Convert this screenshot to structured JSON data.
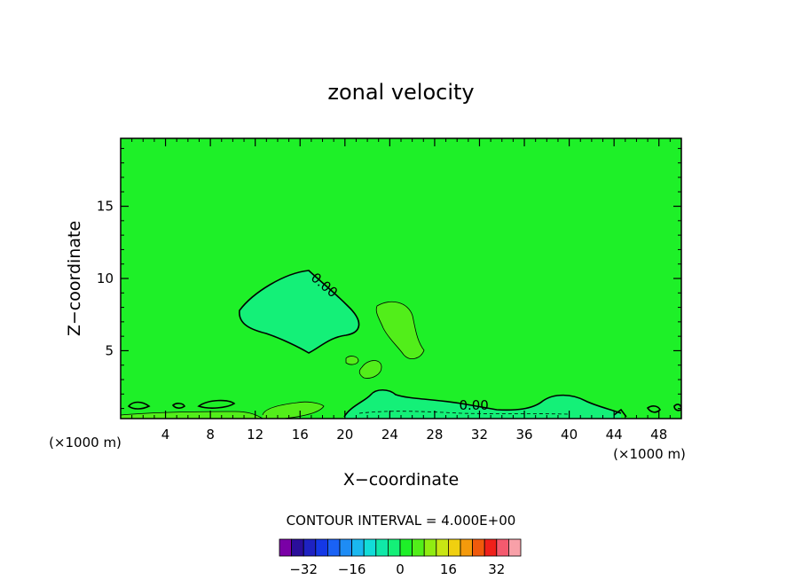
{
  "chart_data": {
    "type": "contour",
    "title": "zonal velocity",
    "xlabel": "X−coordinate",
    "ylabel": "Z−coordinate",
    "x_unit_left": "(×1000 m)",
    "x_unit_right": "(×1000 m)",
    "xlim": [
      0,
      50
    ],
    "ylim": [
      0.3,
      19.7
    ],
    "x_ticks": [
      4,
      8,
      12,
      16,
      20,
      24,
      28,
      32,
      36,
      40,
      44,
      48
    ],
    "x_tick_labels": [
      "4",
      "8",
      "12",
      "16",
      "20",
      "24",
      "28",
      "32",
      "36",
      "40",
      "44",
      "48"
    ],
    "y_ticks": [
      5,
      10,
      15
    ],
    "y_tick_labels": [
      "5",
      "10",
      "15"
    ],
    "contour_labels": [
      {
        "text": "0.00",
        "x": 17.9,
        "y": 9.3
      },
      {
        "text": "0.00",
        "x": 31.5,
        "y": 0.9
      }
    ],
    "contour_interval_text": "CONTOUR INTERVAL = 4.000E+00",
    "colorbar": {
      "levels": [
        -36,
        -32,
        -28,
        -24,
        -20,
        -16,
        -12,
        -8,
        -4,
        0,
        4,
        8,
        12,
        16,
        20,
        24,
        28,
        32,
        36
      ],
      "tick_values": [
        -32,
        -16,
        0,
        16,
        32
      ],
      "tick_labels": [
        "−32",
        "−16",
        "0",
        "16",
        "32"
      ],
      "colors": [
        "#7a00a6",
        "#2a0e9a",
        "#1e22c2",
        "#1438e6",
        "#1a62f5",
        "#1e8cf5",
        "#1ab8f0",
        "#12dcd8",
        "#10e8a8",
        "#14f078",
        "#1ef028",
        "#52ee1a",
        "#90ec12",
        "#c8e614",
        "#f0d010",
        "#f49a0c",
        "#f05a0c",
        "#f0201a",
        "#f45a6e",
        "#f8a0a8"
      ]
    },
    "background_color": "#1ef028",
    "region_colors": {
      "weak_negative": "#14f078",
      "weak_positive": "#52ee1a"
    }
  }
}
